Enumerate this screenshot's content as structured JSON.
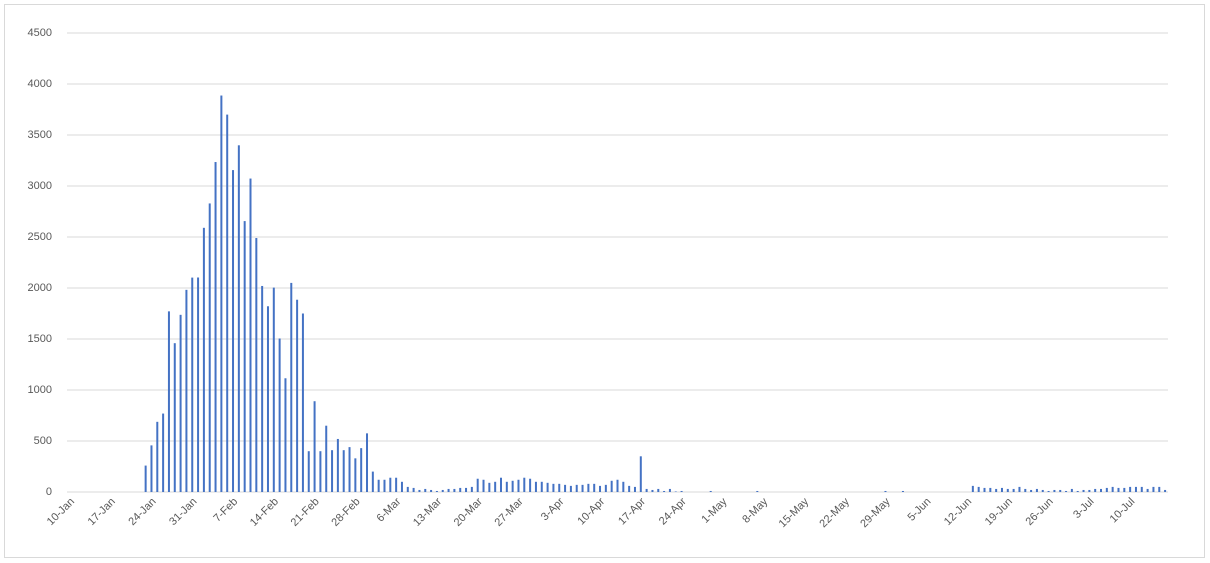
{
  "chart_data": {
    "type": "bar",
    "color": "#4472c4",
    "grid": true,
    "ylim": [
      0,
      4500
    ],
    "yticks": [
      0,
      500,
      1000,
      1500,
      2000,
      2500,
      3000,
      3500,
      4000,
      4500
    ],
    "categories": [
      "10-Jan",
      null,
      null,
      null,
      null,
      null,
      null,
      "17-Jan",
      null,
      null,
      null,
      null,
      null,
      null,
      "24-Jan",
      null,
      null,
      null,
      null,
      null,
      null,
      "31-Jan",
      null,
      null,
      null,
      null,
      null,
      null,
      "7-Feb",
      null,
      null,
      null,
      null,
      null,
      null,
      "14-Feb",
      null,
      null,
      null,
      null,
      null,
      null,
      "21-Feb",
      null,
      null,
      null,
      null,
      null,
      null,
      "28-Feb",
      null,
      null,
      null,
      null,
      null,
      null,
      "6-Mar",
      null,
      null,
      null,
      null,
      null,
      null,
      "13-Mar",
      null,
      null,
      null,
      null,
      null,
      null,
      "20-Mar",
      null,
      null,
      null,
      null,
      null,
      null,
      "27-Mar",
      null,
      null,
      null,
      null,
      null,
      null,
      "3-Apr",
      null,
      null,
      null,
      null,
      null,
      null,
      "10-Apr",
      null,
      null,
      null,
      null,
      null,
      null,
      "17-Apr",
      null,
      null,
      null,
      null,
      null,
      null,
      "24-Apr",
      null,
      null,
      null,
      null,
      null,
      null,
      "1-May",
      null,
      null,
      null,
      null,
      null,
      null,
      "8-May",
      null,
      null,
      null,
      null,
      null,
      null,
      "15-May",
      null,
      null,
      null,
      null,
      null,
      null,
      "22-May",
      null,
      null,
      null,
      null,
      null,
      null,
      "29-May",
      null,
      null,
      null,
      null,
      null,
      null,
      "5-Jun",
      null,
      null,
      null,
      null,
      null,
      null,
      "12-Jun",
      null,
      null,
      null,
      null,
      null,
      null,
      "19-Jun",
      null,
      null,
      null,
      null,
      null,
      null,
      "26-Jun",
      null,
      null,
      null,
      null,
      null,
      null,
      "3-Jul",
      null,
      null,
      null,
      null,
      null,
      null,
      "10-Jul",
      null,
      null,
      null,
      null,
      null,
      null
    ],
    "values": [
      0,
      0,
      0,
      0,
      0,
      0,
      0,
      0,
      0,
      0,
      0,
      0,
      0,
      259,
      457,
      688,
      769,
      1771,
      1459,
      1737,
      1982,
      2102,
      2103,
      2590,
      2829,
      3235,
      3887,
      3700,
      3156,
      3399,
      2656,
      3073,
      2490,
      2020,
      1821,
      2004,
      1505,
      1115,
      2050,
      1885,
      1750,
      400,
      890,
      400,
      650,
      410,
      520,
      410,
      440,
      330,
      430,
      575,
      200,
      120,
      120,
      140,
      140,
      100,
      50,
      40,
      20,
      30,
      20,
      10,
      20,
      30,
      30,
      40,
      40,
      50,
      130,
      120,
      90,
      100,
      140,
      100,
      110,
      120,
      140,
      130,
      100,
      100,
      90,
      80,
      80,
      70,
      60,
      70,
      70,
      80,
      80,
      60,
      70,
      110,
      120,
      100,
      60,
      50,
      350,
      30,
      20,
      30,
      10,
      30,
      5,
      10,
      0,
      0,
      0,
      0,
      10,
      0,
      0,
      0,
      0,
      0,
      0,
      0,
      10,
      0,
      0,
      0,
      0,
      0,
      0,
      0,
      0,
      0,
      0,
      0,
      0,
      0,
      0,
      0,
      0,
      0,
      0,
      0,
      0,
      0,
      10,
      0,
      0,
      10,
      0,
      0,
      0,
      0,
      0,
      0,
      0,
      0,
      0,
      0,
      0,
      60,
      50,
      40,
      40,
      30,
      40,
      30,
      30,
      50,
      30,
      20,
      30,
      20,
      10,
      20,
      20,
      10,
      30,
      10,
      20,
      20,
      30,
      30,
      40,
      50,
      40,
      40,
      50,
      50,
      50,
      30,
      50,
      50,
      20
    ]
  }
}
